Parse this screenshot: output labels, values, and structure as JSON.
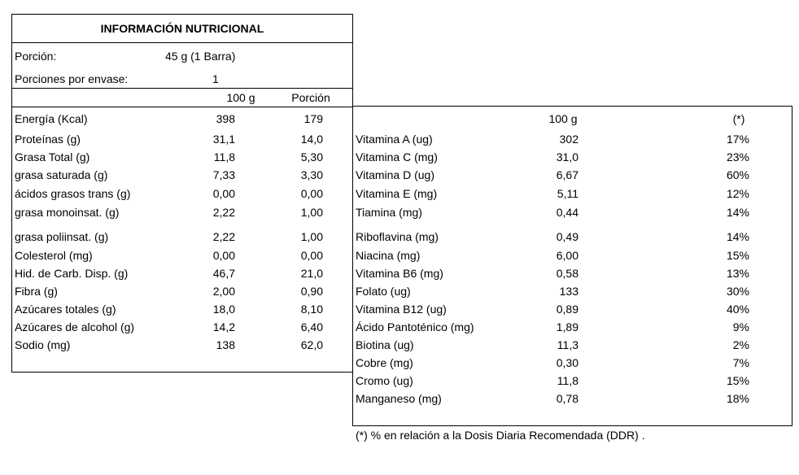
{
  "header": {
    "title": "INFORMACIÓN NUTRICIONAL"
  },
  "serving": {
    "label": "Porción:",
    "value": "45 g (1 Barra)"
  },
  "servings_per_package": {
    "label": "Porciones por envase:",
    "value": "1"
  },
  "left_table": {
    "columns": [
      "100 g",
      "Porción"
    ],
    "rows": [
      [
        "Energía (Kcal)",
        "398",
        "179"
      ],
      [
        "Proteínas (g)",
        "31,1",
        "14,0"
      ],
      [
        "Grasa Total (g)",
        "11,8",
        "5,30"
      ],
      [
        "grasa saturada (g)",
        "7,33",
        "3,30"
      ],
      [
        "ácidos grasos trans (g)",
        "0,00",
        "0,00"
      ],
      [
        "grasa monoinsat. (g)",
        "2,22",
        "1,00"
      ],
      [
        "grasa poliinsat. (g)",
        "2,22",
        "1,00"
      ],
      [
        "Colesterol (mg)",
        "0,00",
        "0,00"
      ],
      [
        "Hid. de Carb. Disp. (g)",
        "46,7",
        "21,0"
      ],
      [
        "Fibra  (g)",
        "2,00",
        "0,90"
      ],
      [
        "Azúcares totales (g)",
        "18,0",
        "8,10"
      ],
      [
        "Azúcares de alcohol (g)",
        "14,2",
        "6,40"
      ],
      [
        "Sodio (mg)",
        "138",
        "62,0"
      ]
    ]
  },
  "right_table": {
    "columns": [
      "100 g",
      "(*)"
    ],
    "rows": [
      [
        "Vitamina A (ug)",
        "302",
        "17%"
      ],
      [
        "Vitamina C (mg)",
        "31,0",
        "23%"
      ],
      [
        "Vitamina D (ug)",
        "6,67",
        "60%"
      ],
      [
        "Vitamina E (mg)",
        "5,11",
        "12%"
      ],
      [
        "Tiamina (mg)",
        "0,44",
        "14%"
      ],
      [
        "Riboflavina (mg)",
        "0,49",
        "14%"
      ],
      [
        "Niacina (mg)",
        "6,00",
        "15%"
      ],
      [
        "Vitamina B6 (mg)",
        "0,58",
        "13%"
      ],
      [
        "Folato (ug)",
        "133",
        "30%"
      ],
      [
        "Vitamina B12 (ug)",
        "0,89",
        "40%"
      ],
      [
        "Ácido Pantoténico (mg)",
        "1,89",
        "9%"
      ],
      [
        "Biotina (ug)",
        "11,3",
        "2%"
      ],
      [
        "Cobre (mg)",
        "0,30",
        "7%"
      ],
      [
        "Cromo (ug)",
        "11,8",
        "15%"
      ],
      [
        "Manganeso (mg)",
        "0,78",
        "18%"
      ]
    ]
  },
  "footnote": "(*) % en relación a la Dosis Diaria Recomendada (DDR) ."
}
